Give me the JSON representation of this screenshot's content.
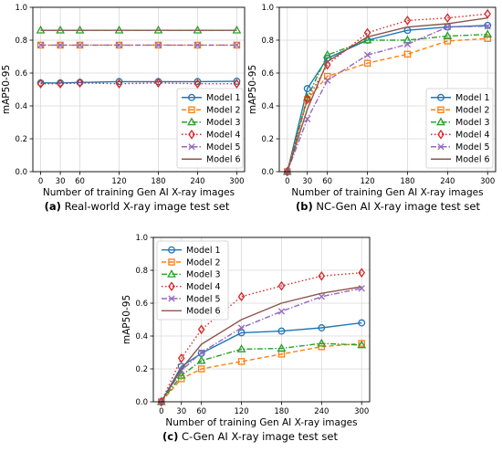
{
  "chart_data": [
    {
      "type": "line",
      "caption_letter": "(a)",
      "caption_text": " Real-world X-ray image test set",
      "xlabel": "Number of training Gen AI X-ray images",
      "ylabel": "mAP50-95",
      "x": [
        0,
        30,
        60,
        120,
        180,
        240,
        300
      ],
      "x_tick_labels": [
        "0",
        "30",
        "60",
        "120",
        "180",
        "240",
        "300"
      ],
      "xlim": [
        -12,
        312
      ],
      "ylim": [
        0,
        1.0
      ],
      "y_ticks": [
        0.0,
        0.2,
        0.4,
        0.6,
        0.8,
        1.0
      ],
      "y_tick_labels": [
        "0.0",
        "0.2",
        "0.4",
        "0.6",
        "0.8",
        "1.0"
      ],
      "grid": true,
      "legend_position": "right",
      "series": [
        {
          "name": "Model 1",
          "values": [
            0.54,
            0.54,
            0.543,
            0.548,
            0.548,
            0.548,
            0.55
          ]
        },
        {
          "name": "Model 2",
          "values": [
            0.77,
            0.77,
            0.77,
            0.77,
            0.77,
            0.77,
            0.77
          ]
        },
        {
          "name": "Model 3",
          "values": [
            0.86,
            0.86,
            0.86,
            0.86,
            0.86,
            0.86,
            0.86
          ]
        },
        {
          "name": "Model 4",
          "values": [
            0.535,
            0.535,
            0.54,
            0.535,
            0.54,
            0.535,
            0.535
          ]
        },
        {
          "name": "Model 5",
          "values": [
            0.77,
            0.77,
            0.77,
            0.77,
            0.77,
            0.77,
            0.77
          ]
        },
        {
          "name": "Model 6",
          "values": [
            0.86,
            0.86,
            0.86,
            0.86,
            0.86,
            0.86,
            0.86
          ]
        }
      ]
    },
    {
      "type": "line",
      "caption_letter": "(b)",
      "caption_text": " NC-Gen AI X-ray image test set",
      "xlabel": "Number of training Gen AI X-ray images",
      "ylabel": "mAP50-95",
      "x": [
        0,
        30,
        60,
        120,
        180,
        240,
        300
      ],
      "x_tick_labels": [
        "0",
        "30",
        "60",
        "120",
        "180",
        "240",
        "300"
      ],
      "xlim": [
        -12,
        312
      ],
      "ylim": [
        0,
        1.0
      ],
      "y_ticks": [
        0.0,
        0.2,
        0.4,
        0.6,
        0.8,
        1.0
      ],
      "y_tick_labels": [
        "0.0",
        "0.2",
        "0.4",
        "0.6",
        "0.8",
        "1.0"
      ],
      "grid": true,
      "legend_position": "lower-right",
      "series": [
        {
          "name": "Model 1",
          "values": [
            0.0,
            0.505,
            0.69,
            0.8,
            0.86,
            0.88,
            0.89
          ]
        },
        {
          "name": "Model 2",
          "values": [
            0.0,
            0.44,
            0.58,
            0.66,
            0.715,
            0.795,
            0.81
          ]
        },
        {
          "name": "Model 3",
          "values": [
            0.0,
            0.45,
            0.71,
            0.8,
            0.8,
            0.825,
            0.835
          ]
        },
        {
          "name": "Model 4",
          "values": [
            0.0,
            0.44,
            0.65,
            0.845,
            0.92,
            0.935,
            0.96
          ]
        },
        {
          "name": "Model 5",
          "values": [
            0.0,
            0.32,
            0.555,
            0.71,
            0.775,
            0.88,
            0.885
          ]
        },
        {
          "name": "Model 6",
          "values": [
            0.0,
            0.38,
            0.67,
            0.82,
            0.88,
            0.9,
            0.935
          ]
        }
      ]
    },
    {
      "type": "line",
      "caption_letter": "(c)",
      "caption_text": " C-Gen AI X-ray image test set",
      "xlabel": "Number of training Gen AI X-ray images",
      "ylabel": "mAP50-95",
      "x": [
        0,
        30,
        60,
        120,
        180,
        240,
        300
      ],
      "x_tick_labels": [
        "0",
        "30",
        "60",
        "120",
        "180",
        "240",
        "300"
      ],
      "xlim": [
        -12,
        312
      ],
      "ylim": [
        0,
        1.0
      ],
      "y_ticks": [
        0.0,
        0.2,
        0.4,
        0.6,
        0.8,
        1.0
      ],
      "y_tick_labels": [
        "0.0",
        "0.2",
        "0.4",
        "0.6",
        "0.8",
        "1.0"
      ],
      "grid": true,
      "legend_position": "upper-left",
      "series": [
        {
          "name": "Model 1",
          "values": [
            0.0,
            0.215,
            0.295,
            0.42,
            0.43,
            0.45,
            0.48
          ]
        },
        {
          "name": "Model 2",
          "values": [
            0.0,
            0.14,
            0.2,
            0.245,
            0.29,
            0.335,
            0.355
          ]
        },
        {
          "name": "Model 3",
          "values": [
            0.0,
            0.16,
            0.25,
            0.32,
            0.325,
            0.355,
            0.345
          ]
        },
        {
          "name": "Model 4",
          "values": [
            0.0,
            0.265,
            0.44,
            0.64,
            0.705,
            0.765,
            0.785
          ]
        },
        {
          "name": "Model 5",
          "values": [
            0.0,
            0.19,
            0.3,
            0.45,
            0.55,
            0.64,
            0.69
          ]
        },
        {
          "name": "Model 6",
          "values": [
            0.0,
            0.2,
            0.35,
            0.5,
            0.6,
            0.66,
            0.7
          ]
        }
      ]
    }
  ],
  "style": {
    "colors": [
      "#1f77b4",
      "#ff7f0e",
      "#2ca02c",
      "#d62728",
      "#9467bd",
      "#8c564b"
    ],
    "markers": [
      "circle",
      "square",
      "triangle",
      "diamond",
      "x",
      "none"
    ],
    "dashes": [
      "",
      "5,3",
      "6,2,1.5,2",
      "1.5,2.5",
      "6,2,1.5,2",
      ""
    ],
    "grid_color": "#d9d9d9"
  }
}
